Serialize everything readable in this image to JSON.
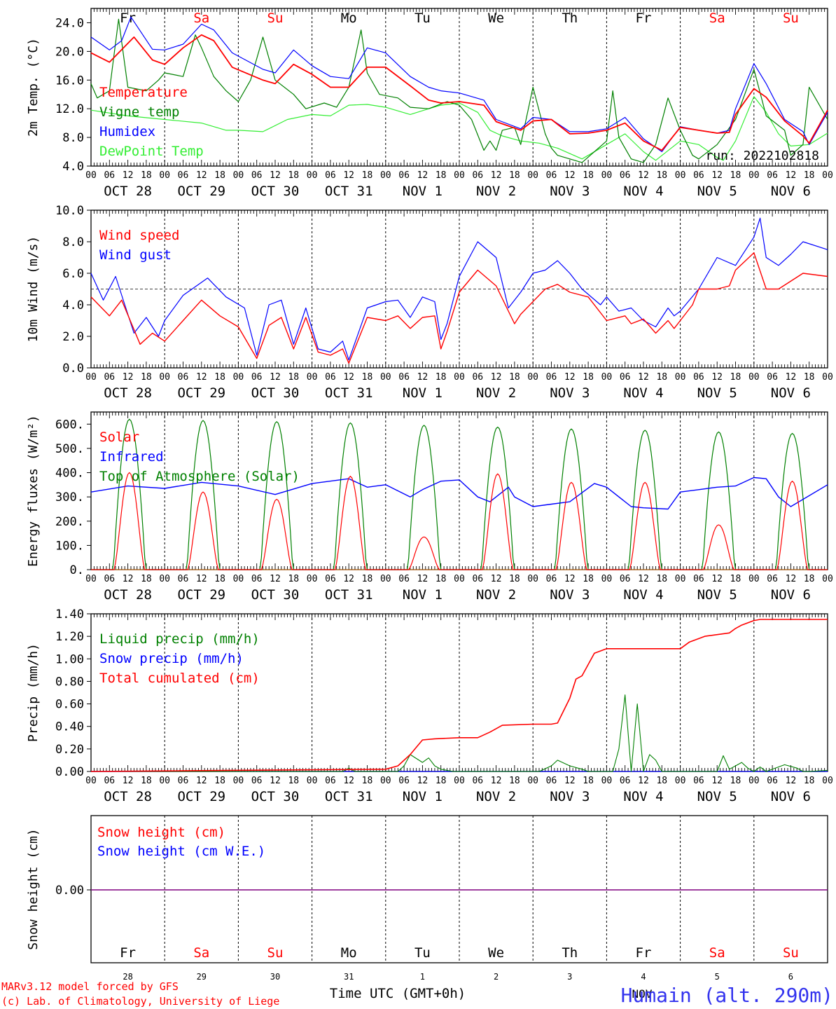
{
  "colors": {
    "red": "#ff0000",
    "green": "#008000",
    "blue": "#0000ff",
    "lightgreen": "#33ee33",
    "purple": "#800080"
  },
  "days": [
    {
      "abbr": "Fr",
      "date": "OCT 28",
      "num": "28",
      "weekend": false
    },
    {
      "abbr": "Sa",
      "date": "OCT 29",
      "num": "29",
      "weekend": true
    },
    {
      "abbr": "Su",
      "date": "OCT 30",
      "num": "30",
      "weekend": true
    },
    {
      "abbr": "Mo",
      "date": "OCT 31",
      "num": "31",
      "weekend": false
    },
    {
      "abbr": "Tu",
      "date": "NOV  1",
      "num": "1",
      "weekend": false
    },
    {
      "abbr": "We",
      "date": "NOV  2",
      "num": "2",
      "weekend": false
    },
    {
      "abbr": "Th",
      "date": "NOV  3",
      "num": "3",
      "weekend": false
    },
    {
      "abbr": "Fr",
      "date": "NOV  4",
      "num": "4",
      "weekend": false
    },
    {
      "abbr": "Sa",
      "date": "NOV  5",
      "num": "5",
      "weekend": true
    },
    {
      "abbr": "Su",
      "date": "NOV  6",
      "num": "6",
      "weekend": true
    }
  ],
  "hour_ticks": [
    "00",
    "06",
    "12",
    "18"
  ],
  "run_label": "run: 2022102818",
  "footer": {
    "credit1": "MARv3.12 model forced by GFS",
    "credit2": "(c) Lab. of Climatology, University of Liege",
    "xlabel": "Time UTC (GMT+0h)",
    "month": "NOV",
    "station": "Humain (alt. 290m)"
  },
  "chart_data": [
    {
      "type": "line",
      "ylabel": "2m Temp. (°C)",
      "ylim": [
        4.0,
        26.0
      ],
      "yticks": [
        4.0,
        8.0,
        12.0,
        16.0,
        20.0,
        24.0
      ],
      "ytick_labels": [
        "4.0",
        "8.0",
        "12.0",
        "16.0",
        "20.0",
        "24.0"
      ],
      "x_unit": "hours since 2022-10-28 00 UTC",
      "series": [
        {
          "name": "Temperature",
          "color": "red",
          "x": [
            0,
            6,
            9,
            14,
            20,
            24,
            30,
            36,
            40,
            46,
            56,
            60,
            66,
            72,
            78,
            84,
            90,
            96,
            104,
            110,
            114,
            120,
            128,
            132,
            140,
            144,
            150,
            156,
            162,
            168,
            174,
            180,
            186,
            192,
            198,
            204,
            208,
            210,
            216,
            220,
            226,
            232,
            234,
            240
          ],
          "y": [
            19.8,
            18.5,
            19.8,
            22.0,
            18.8,
            18.2,
            20.5,
            22.3,
            21.5,
            17.8,
            16.0,
            15.5,
            18.2,
            16.8,
            15.0,
            15.0,
            17.8,
            17.8,
            15.2,
            13.2,
            12.8,
            13.0,
            12.5,
            10.2,
            9.0,
            10.3,
            10.5,
            8.5,
            8.6,
            9.0,
            10.0,
            7.5,
            6.2,
            9.4,
            9.0,
            8.6,
            8.7,
            11.2,
            14.8,
            13.6,
            10.3,
            8.2,
            7.2,
            11.8
          ]
        },
        {
          "name": "Vigne temp",
          "color": "green",
          "x": [
            0,
            2,
            6,
            9,
            12,
            18,
            22,
            24,
            30,
            34,
            36,
            40,
            44,
            48,
            52,
            56,
            60,
            66,
            70,
            76,
            80,
            84,
            88,
            90,
            94,
            100,
            104,
            110,
            116,
            120,
            124,
            128,
            130,
            132,
            134,
            138,
            140,
            144,
            148,
            150,
            152,
            156,
            160,
            168,
            170,
            172,
            176,
            180,
            184,
            188,
            192,
            196,
            198,
            204,
            210,
            216,
            220,
            226,
            228,
            232,
            234,
            240
          ],
          "y": [
            15.5,
            13.5,
            14.5,
            24.5,
            15.0,
            14.5,
            16.0,
            17.0,
            16.5,
            22.3,
            20.5,
            16.5,
            14.5,
            13.0,
            16.0,
            22.0,
            16.0,
            14.0,
            12.0,
            12.8,
            12.2,
            15.0,
            23.0,
            17.0,
            14.0,
            13.5,
            12.2,
            12.0,
            13.0,
            12.5,
            10.5,
            6.2,
            7.5,
            6.2,
            9.0,
            9.4,
            7.0,
            15.0,
            8.5,
            6.5,
            5.5,
            5.0,
            4.5,
            7.5,
            14.5,
            8.0,
            5.0,
            4.5,
            7.0,
            13.5,
            9.0,
            5.5,
            5.0,
            7.0,
            10.5,
            17.5,
            11.0,
            9.0,
            5.5,
            7.0,
            15.0,
            10.5
          ]
        },
        {
          "name": "Humidex",
          "color": "blue",
          "x": [
            0,
            6,
            10,
            13,
            20,
            24,
            30,
            36,
            40,
            46,
            56,
            60,
            66,
            72,
            78,
            84,
            90,
            96,
            104,
            110,
            114,
            120,
            128,
            132,
            140,
            144,
            150,
            156,
            162,
            168,
            174,
            180,
            186,
            192,
            198,
            204,
            208,
            210,
            216,
            220,
            226,
            232,
            234,
            240
          ],
          "y": [
            22.0,
            20.2,
            21.5,
            24.8,
            20.3,
            20.2,
            21.0,
            23.8,
            23.0,
            19.8,
            17.5,
            17.0,
            20.2,
            18.0,
            16.5,
            16.2,
            20.5,
            19.8,
            16.5,
            15.0,
            14.5,
            14.2,
            13.2,
            10.5,
            9.2,
            10.8,
            10.5,
            8.8,
            8.8,
            9.2,
            10.8,
            7.8,
            6.0,
            9.5,
            9.0,
            8.6,
            9.0,
            12.0,
            18.3,
            15.5,
            10.5,
            8.8,
            7.0,
            11.5
          ]
        },
        {
          "name": "DewPoint Temp",
          "color": "lightgreen",
          "x": [
            0,
            12,
            24,
            36,
            44,
            48,
            56,
            64,
            72,
            78,
            84,
            90,
            96,
            104,
            110,
            114,
            120,
            126,
            130,
            134,
            140,
            146,
            152,
            160,
            168,
            174,
            180,
            184,
            192,
            198,
            204,
            206,
            210,
            216,
            220,
            224,
            228,
            234,
            240
          ],
          "y": [
            11.8,
            11.0,
            10.5,
            10.0,
            9.0,
            9.0,
            8.8,
            10.5,
            11.2,
            11.0,
            12.5,
            12.6,
            12.2,
            11.2,
            12.0,
            12.5,
            12.8,
            11.5,
            9.0,
            8.2,
            7.5,
            7.2,
            6.5,
            5.0,
            7.0,
            8.5,
            6.0,
            4.8,
            7.5,
            7.0,
            5.2,
            4.8,
            7.5,
            13.7,
            11.5,
            8.5,
            6.8,
            7.0,
            8.6
          ]
        }
      ]
    },
    {
      "type": "line",
      "ylabel": "10m Wind (m/s)",
      "ylim": [
        0.0,
        10.0
      ],
      "yticks": [
        0.0,
        2.0,
        4.0,
        6.0,
        8.0,
        10.0
      ],
      "ytick_labels": [
        "0.0",
        "2.0",
        "4.0",
        "6.0",
        "8.0",
        "10.0"
      ],
      "x_unit": "hours since 2022-10-28 00 UTC",
      "series": [
        {
          "name": "Wind speed",
          "color": "red",
          "x": [
            0,
            6,
            10,
            16,
            20,
            24,
            30,
            36,
            42,
            48,
            54,
            58,
            62,
            66,
            70,
            74,
            78,
            82,
            84,
            90,
            96,
            100,
            104,
            108,
            112,
            114,
            116,
            120,
            126,
            132,
            138,
            140,
            144,
            148,
            152,
            156,
            162,
            168,
            174,
            176,
            180,
            184,
            188,
            190,
            192,
            196,
            198,
            204,
            208,
            210,
            216,
            220,
            224,
            232,
            240
          ],
          "y": [
            4.5,
            3.3,
            4.3,
            1.5,
            2.2,
            1.7,
            3.0,
            4.3,
            3.3,
            2.6,
            0.6,
            2.7,
            3.2,
            1.2,
            3.2,
            1.0,
            0.8,
            1.2,
            0.3,
            3.2,
            3.0,
            3.3,
            2.5,
            3.2,
            3.3,
            1.2,
            2.3,
            4.8,
            6.2,
            5.2,
            2.8,
            3.4,
            4.2,
            5.0,
            5.3,
            4.8,
            4.5,
            3.0,
            3.3,
            2.8,
            3.1,
            2.2,
            3.0,
            2.5,
            3.0,
            4.0,
            5.0,
            5.0,
            5.2,
            6.2,
            7.3,
            5.0,
            5.0,
            6.0,
            5.8
          ]
        },
        {
          "name": "Wind gust",
          "color": "blue",
          "x": [
            0,
            4,
            8,
            14,
            18,
            22,
            24,
            30,
            38,
            44,
            50,
            54,
            58,
            62,
            66,
            70,
            74,
            78,
            82,
            84,
            90,
            96,
            100,
            104,
            108,
            112,
            114,
            116,
            120,
            126,
            132,
            136,
            140,
            144,
            148,
            152,
            156,
            160,
            166,
            168,
            172,
            176,
            180,
            184,
            188,
            190,
            192,
            198,
            204,
            210,
            216,
            218,
            220,
            224,
            228,
            232,
            240
          ],
          "y": [
            6.0,
            4.3,
            5.8,
            2.2,
            3.2,
            2.0,
            3.0,
            4.6,
            5.7,
            4.5,
            3.8,
            0.8,
            4.0,
            4.3,
            1.5,
            3.8,
            1.2,
            1.0,
            1.7,
            0.5,
            3.8,
            4.2,
            4.3,
            3.2,
            4.5,
            4.2,
            1.8,
            2.8,
            5.8,
            8.0,
            7.0,
            3.8,
            4.8,
            6.0,
            6.2,
            6.8,
            6.0,
            5.0,
            4.0,
            4.5,
            3.6,
            3.8,
            3.0,
            2.6,
            3.8,
            3.3,
            3.6,
            5.0,
            7.0,
            6.5,
            8.3,
            9.5,
            7.0,
            6.5,
            7.2,
            8.0,
            7.5
          ]
        }
      ]
    },
    {
      "type": "line",
      "ylabel": "Energy fluxes (W/m²)",
      "ylim": [
        0,
        650
      ],
      "yticks": [
        0,
        100,
        200,
        300,
        400,
        500,
        600
      ],
      "ytick_labels": [
        "0.",
        "100.",
        "200.",
        "300.",
        "400.",
        "500.",
        "600."
      ],
      "x_unit": "hours since 2022-10-28 00 UTC",
      "daily_peaks": {
        "solar": [
          400,
          320,
          290,
          385,
          135,
          395,
          360,
          360,
          185,
          365
        ],
        "top_of_atmosphere": [
          620,
          615,
          610,
          605,
          595,
          588,
          580,
          575,
          568,
          562
        ]
      },
      "series": [
        {
          "name": "Solar",
          "color": "red"
        },
        {
          "name": "Infrared",
          "color": "blue",
          "x": [
            0,
            12,
            24,
            36,
            48,
            60,
            72,
            84,
            90,
            96,
            104,
            108,
            114,
            120,
            126,
            130,
            136,
            138,
            144,
            150,
            156,
            164,
            168,
            176,
            180,
            188,
            192,
            198,
            204,
            210,
            216,
            220,
            224,
            228,
            232,
            240
          ],
          "y": [
            320,
            345,
            335,
            360,
            345,
            310,
            355,
            375,
            340,
            350,
            300,
            330,
            365,
            370,
            300,
            280,
            340,
            300,
            260,
            270,
            280,
            355,
            340,
            260,
            255,
            250,
            320,
            330,
            340,
            345,
            380,
            375,
            300,
            260,
            290,
            350
          ]
        },
        {
          "name": "Top of Atmosphere (Solar)",
          "color": "green"
        }
      ]
    },
    {
      "type": "line",
      "ylabel": "Precip (mm/h)",
      "ylim": [
        0.0,
        1.4
      ],
      "yticks": [
        0.0,
        0.2,
        0.4,
        0.6,
        0.8,
        1.0,
        1.2,
        1.4
      ],
      "ytick_labels": [
        "0.00",
        "0.20",
        "0.40",
        "0.60",
        "0.80",
        "1.00",
        "1.20",
        "1.40"
      ],
      "x_unit": "hours since 2022-10-28 00 UTC",
      "series": [
        {
          "name": "Liquid precip (mm/h)",
          "color": "green",
          "x": [
            0,
            82,
            84,
            86,
            100,
            102,
            104,
            108,
            110,
            112,
            114,
            118,
            124,
            146,
            150,
            152,
            156,
            160,
            162,
            170,
            172,
            174,
            176,
            178,
            180,
            182,
            184,
            186,
            188,
            192,
            204,
            206,
            208,
            210,
            212,
            214,
            216,
            218,
            220,
            226,
            230,
            232,
            234,
            240
          ],
          "y": [
            0,
            0,
            0.03,
            0,
            0,
            0.05,
            0.15,
            0.08,
            0.12,
            0.05,
            0.02,
            0,
            0,
            0,
            0.05,
            0.1,
            0.05,
            0.02,
            0,
            0,
            0.2,
            0.68,
            0,
            0.6,
            0,
            0.15,
            0.1,
            0,
            0,
            0,
            0,
            0.14,
            0.02,
            0.05,
            0.08,
            0.03,
            0,
            0.04,
            0,
            0.06,
            0.03,
            0,
            0,
            0.01
          ]
        },
        {
          "name": "Snow precip (mm/h)",
          "color": "blue",
          "x": [
            0,
            240
          ],
          "y": [
            0,
            0
          ]
        },
        {
          "name": "Total cumulated (cm)",
          "color": "red",
          "x": [
            0,
            96,
            100,
            104,
            108,
            112,
            120,
            126,
            130,
            134,
            144,
            150,
            152,
            156,
            158,
            160,
            164,
            168,
            180,
            184,
            192,
            195,
            200,
            208,
            210,
            212,
            215,
            216,
            218,
            240
          ],
          "y": [
            0.0,
            0.02,
            0.05,
            0.15,
            0.28,
            0.29,
            0.3,
            0.3,
            0.35,
            0.41,
            0.42,
            0.42,
            0.43,
            0.65,
            0.82,
            0.85,
            1.05,
            1.09,
            1.09,
            1.09,
            1.09,
            1.15,
            1.2,
            1.23,
            1.27,
            1.3,
            1.33,
            1.34,
            1.35,
            1.35
          ]
        }
      ]
    },
    {
      "type": "line",
      "ylabel": "Snow height (cm)",
      "yticks": [
        0.0
      ],
      "ytick_labels": [
        "0.00"
      ],
      "x_unit": "hours since 2022-10-28 00 UTC",
      "series": [
        {
          "name": "Snow height (cm)",
          "color": "red",
          "x": [
            0,
            240
          ],
          "y": [
            0,
            0
          ]
        },
        {
          "name": "Snow height (cm W.E.)",
          "color": "blue",
          "x": [
            0,
            240
          ],
          "y": [
            0,
            0
          ]
        }
      ]
    }
  ]
}
